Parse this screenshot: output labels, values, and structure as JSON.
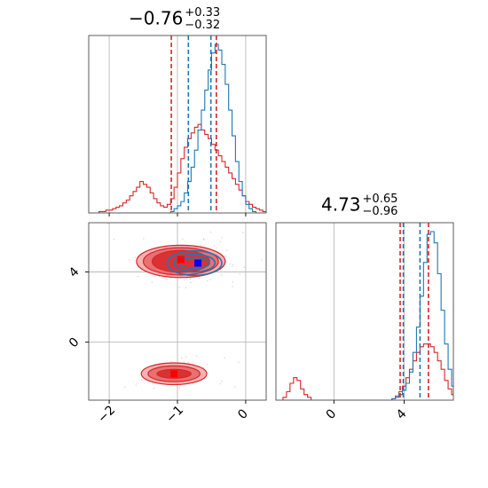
{
  "colors": {
    "primary": "#1f77b4",
    "secondary": "#d62728",
    "grid": "#b0b0b0",
    "axes": "#4d4d4d"
  },
  "titles": [
    {
      "main": "−0.76",
      "plus": "+0.33",
      "minus": "−0.32"
    },
    {
      "main": "4.73",
      "plus": "+0.65",
      "minus": "−0.96"
    }
  ],
  "chart_data": {
    "type": "corner",
    "grid": true,
    "parameters": [
      {
        "median": -0.76,
        "err_plus": 0.33,
        "err_minus": 0.32,
        "xlim": [
          -2.3,
          0.3
        ],
        "xticks": [
          -2,
          -1,
          0
        ],
        "xtick_labels": [
          "−2",
          "−1",
          "0"
        ]
      },
      {
        "median": 4.73,
        "err_plus": 0.65,
        "err_minus": 0.96,
        "xlim": [
          -3.3,
          6.8
        ],
        "xticks": [
          0,
          4
        ],
        "xtick_labels": [
          "0",
          "4"
        ]
      }
    ],
    "series": [
      {
        "color": "#1f77b4",
        "quantile_lines": {
          "p1": [
            -0.84,
            -0.51
          ],
          "p2": [
            3.95,
            4.9
          ]
        },
        "best_fit": [
          -0.7,
          4.5
        ],
        "hist_p1": {
          "x0": -2.3,
          "width": 0.05,
          "counts": [
            0,
            0,
            0,
            0,
            0,
            0,
            0,
            0,
            0,
            0,
            0,
            0,
            0,
            0,
            0,
            0,
            0,
            0,
            0,
            0,
            0,
            0,
            0,
            0,
            1,
            3,
            5,
            8,
            14,
            22,
            32,
            44,
            58,
            72,
            86,
            100,
            112,
            118,
            114,
            104,
            90,
            72,
            54,
            36,
            22,
            12,
            6,
            3,
            1,
            0,
            0,
            0,
            0
          ]
        },
        "hist_p2": {
          "x0": -3.3,
          "width": 0.2,
          "counts": [
            0,
            0,
            0,
            0,
            0,
            0,
            0,
            0,
            0,
            0,
            0,
            0,
            0,
            0,
            0,
            0,
            0,
            0,
            0,
            0,
            0,
            0,
            0,
            0,
            0,
            0,
            0,
            0,
            0,
            0,
            0,
            0,
            0,
            1,
            2,
            4,
            7,
            12,
            20,
            34,
            52,
            74,
            98,
            118,
            120,
            112,
            90,
            64,
            40,
            22,
            10,
            4
          ]
        }
      },
      {
        "color": "#d62728",
        "quantile_lines": {
          "p1": [
            -1.09,
            -0.43
          ],
          "p2": [
            3.77,
            5.38
          ]
        },
        "best_fit": [
          -1.05,
          -1.8
        ],
        "hist_p1": {
          "x0": -2.3,
          "width": 0.05,
          "counts": [
            0,
            0,
            0,
            1,
            1,
            2,
            2,
            3,
            4,
            5,
            7,
            9,
            12,
            15,
            18,
            22,
            20,
            18,
            14,
            10,
            7,
            5,
            4,
            6,
            10,
            18,
            28,
            38,
            46,
            52,
            56,
            60,
            62,
            58,
            55,
            52,
            48,
            44,
            40,
            36,
            32,
            28,
            24,
            20,
            16,
            12,
            8,
            6,
            4,
            3,
            2,
            1,
            0
          ]
        },
        "hist_p2": {
          "x0": -3.3,
          "width": 0.2,
          "counts": [
            0,
            0,
            2,
            6,
            12,
            16,
            14,
            8,
            4,
            2,
            0,
            0,
            0,
            0,
            0,
            0,
            0,
            0,
            0,
            0,
            0,
            0,
            0,
            0,
            0,
            0,
            0,
            0,
            0,
            0,
            0,
            0,
            0,
            1,
            3,
            6,
            10,
            16,
            22,
            28,
            34,
            38,
            40,
            40,
            38,
            34,
            28,
            22,
            14,
            8,
            4,
            2
          ]
        }
      }
    ],
    "contours_2d": [
      {
        "color": "#d62728",
        "center": [
          -0.95,
          4.6
        ],
        "radii": [
          [
            0.42,
            0.62
          ],
          [
            0.55,
            0.78
          ],
          [
            0.65,
            0.92
          ]
        ]
      },
      {
        "color": "#d62728",
        "center": [
          -1.05,
          -1.8
        ],
        "radii": [
          [
            0.25,
            0.25
          ],
          [
            0.38,
            0.45
          ],
          [
            0.48,
            0.62
          ]
        ]
      },
      {
        "color": "#1f77b4",
        "center": [
          -0.75,
          4.5
        ],
        "radii": [
          [
            0.22,
            0.3
          ],
          [
            0.3,
            0.5
          ],
          [
            0.4,
            0.7
          ]
        ]
      }
    ]
  }
}
